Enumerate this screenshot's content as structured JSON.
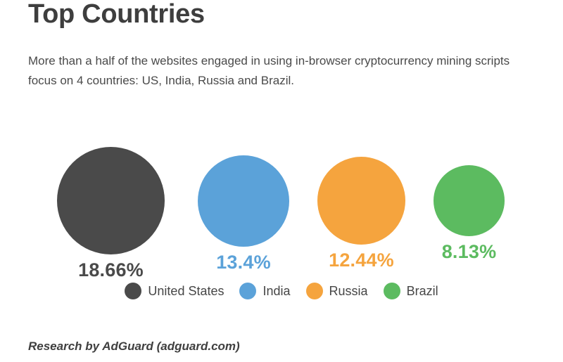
{
  "header": {
    "title": "Top Countries",
    "subtitle_lines": [
      "More than a half of the websites engaged in using in-browser cryptocurrency mining scripts",
      "focus on 4 countries: US, India, Russia and Brazil."
    ]
  },
  "footer": {
    "credit": "Research by AdGuard (adguard.com)"
  },
  "colors": {
    "background": "#ffffff",
    "title_text": "#3e3e3e",
    "body_text": "#4a4a4a",
    "legend_text": "#464646"
  },
  "chart_data": {
    "type": "bubble",
    "title": "Top Countries",
    "categories": [
      "United States",
      "India",
      "Russia",
      "Brazil"
    ],
    "values": [
      18.66,
      13.4,
      12.44,
      8.13
    ],
    "value_labels": [
      "18.66%",
      "13.4%",
      "12.44%",
      "8.13%"
    ],
    "series_colors": [
      "#4a4a4a",
      "#5ba2d9",
      "#f5a43e",
      "#5cbb60"
    ],
    "unit": "%",
    "size_encoding": "circle area proportional to value",
    "legend_position": "bottom",
    "legend": [
      {
        "label": "United States",
        "color": "#4a4a4a"
      },
      {
        "label": "India",
        "color": "#5ba2d9"
      },
      {
        "label": "Russia",
        "color": "#f5a43e"
      },
      {
        "label": "Brazil",
        "color": "#5cbb60"
      }
    ]
  }
}
